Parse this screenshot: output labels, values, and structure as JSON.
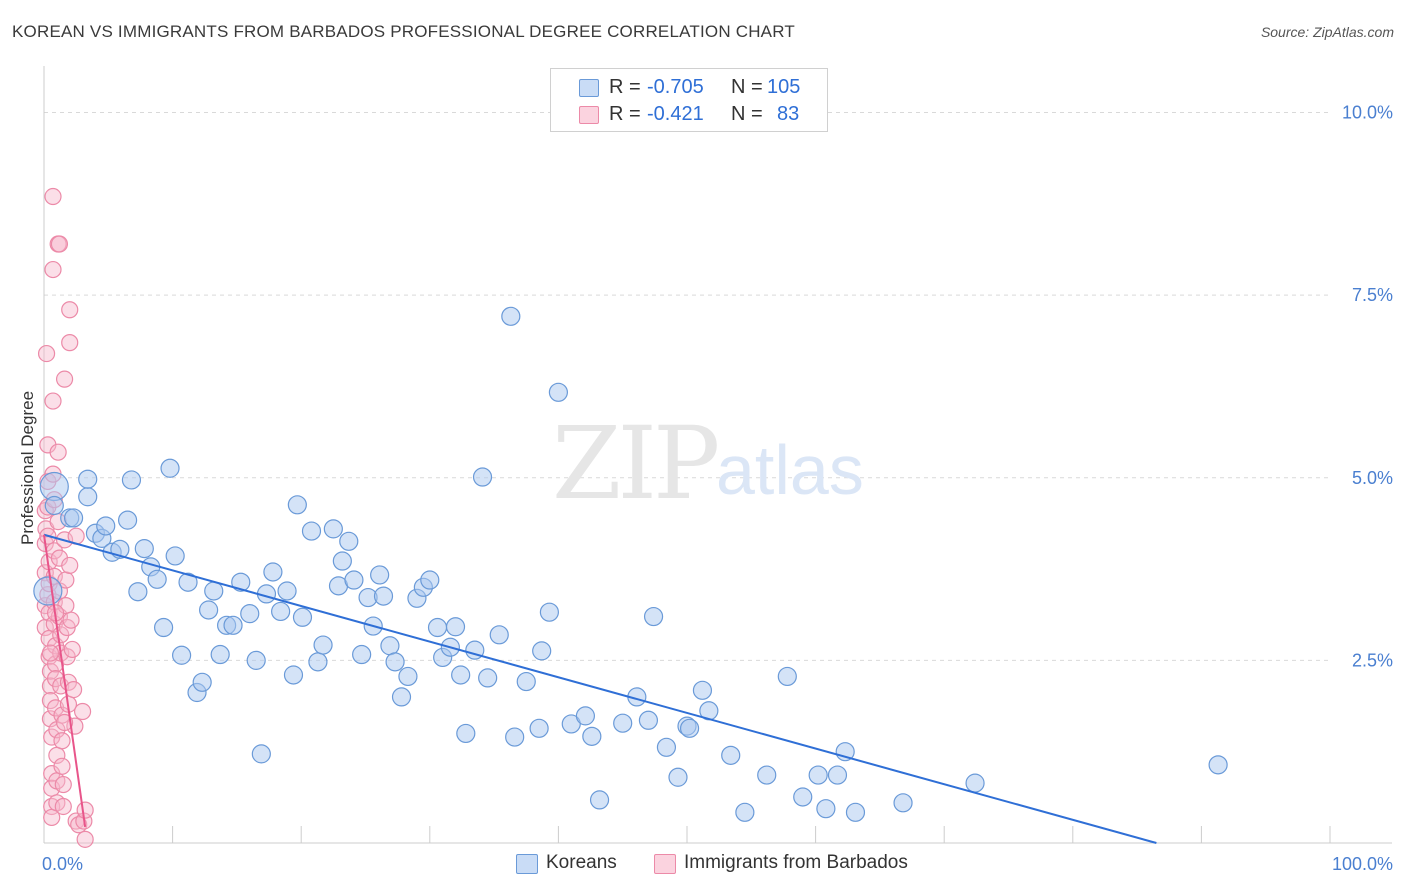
{
  "header": {
    "title": "KOREAN VS IMMIGRANTS FROM BARBADOS PROFESSIONAL DEGREE CORRELATION CHART",
    "source": "Source: ZipAtlas.com"
  },
  "watermark": {
    "zip": "ZIP",
    "atlas": "atlas"
  },
  "legend": {
    "rows": [
      {
        "r_label": "R =",
        "r_value": "-0.705",
        "n_label": "N =",
        "n_value": "105",
        "color": "#a9c8f0"
      },
      {
        "r_label": "R =",
        "r_value": "-0.421",
        "n_label": "N =",
        "n_value": "83",
        "color": "#f6b8cb"
      }
    ]
  },
  "bottom_legend": {
    "koreans": "Koreans",
    "barbados": "Immigrants from Barbados"
  },
  "colors": {
    "blue_fill": "#a9c8f0",
    "blue_stroke": "#6a9ad8",
    "blue_line": "#2f6fd6",
    "pink_fill": "#f6b8cb",
    "pink_stroke": "#ec8aa8",
    "pink_line": "#e8558a",
    "grid": "#d9d9d9"
  },
  "chart_data": {
    "type": "scatter",
    "title": "KOREAN VS IMMIGRANTS FROM BARBADOS PROFESSIONAL DEGREE CORRELATION CHART",
    "xlabel": "",
    "ylabel": "Professional Degree",
    "xlim": [
      0,
      100
    ],
    "ylim": [
      0,
      10.5
    ],
    "x_tick_labels": [
      "0.0%",
      "100.0%"
    ],
    "y_ticks": [
      2.5,
      5.0,
      7.5,
      10.0
    ],
    "y_tick_labels": [
      "2.5%",
      "5.0%",
      "7.5%",
      "10.0%"
    ],
    "grid": true,
    "series": [
      {
        "name": "Koreans",
        "trend": {
          "x": [
            0,
            86.5
          ],
          "y": [
            4.22,
            0.0
          ]
        },
        "points": [
          [
            0.3,
            3.45
          ],
          [
            0.8,
            4.88
          ],
          [
            0.8,
            4.62
          ],
          [
            2.0,
            4.45
          ],
          [
            2.3,
            4.45
          ],
          [
            3.4,
            4.74
          ],
          [
            3.4,
            4.98
          ],
          [
            4.0,
            4.24
          ],
          [
            4.5,
            4.17
          ],
          [
            4.8,
            4.34
          ],
          [
            5.3,
            3.98
          ],
          [
            5.9,
            4.02
          ],
          [
            6.5,
            4.42
          ],
          [
            6.8,
            4.97
          ],
          [
            7.3,
            3.44
          ],
          [
            7.8,
            4.03
          ],
          [
            8.3,
            3.78
          ],
          [
            8.8,
            3.61
          ],
          [
            9.3,
            2.95
          ],
          [
            9.8,
            5.13
          ],
          [
            10.2,
            3.93
          ],
          [
            10.7,
            2.57
          ],
          [
            11.2,
            3.57
          ],
          [
            11.9,
            2.06
          ],
          [
            12.3,
            2.2
          ],
          [
            12.8,
            3.19
          ],
          [
            13.2,
            3.45
          ],
          [
            13.7,
            2.58
          ],
          [
            14.2,
            2.98
          ],
          [
            14.7,
            2.98
          ],
          [
            15.3,
            3.57
          ],
          [
            16.0,
            3.14
          ],
          [
            16.5,
            2.5
          ],
          [
            16.9,
            1.22
          ],
          [
            17.3,
            3.41
          ],
          [
            17.8,
            3.71
          ],
          [
            18.4,
            3.17
          ],
          [
            18.9,
            3.45
          ],
          [
            19.4,
            2.3
          ],
          [
            19.7,
            4.63
          ],
          [
            20.1,
            3.09
          ],
          [
            20.8,
            4.27
          ],
          [
            21.3,
            2.48
          ],
          [
            21.7,
            2.71
          ],
          [
            22.5,
            4.3
          ],
          [
            22.9,
            3.52
          ],
          [
            23.2,
            3.86
          ],
          [
            23.7,
            4.13
          ],
          [
            24.1,
            3.6
          ],
          [
            24.7,
            2.58
          ],
          [
            25.2,
            3.36
          ],
          [
            25.6,
            2.97
          ],
          [
            26.1,
            3.67
          ],
          [
            26.4,
            3.38
          ],
          [
            26.9,
            2.7
          ],
          [
            27.3,
            2.48
          ],
          [
            27.8,
            2.0
          ],
          [
            28.3,
            2.28
          ],
          [
            29.0,
            3.35
          ],
          [
            29.5,
            3.5
          ],
          [
            30.0,
            3.6
          ],
          [
            30.6,
            2.95
          ],
          [
            31.0,
            2.54
          ],
          [
            31.6,
            2.68
          ],
          [
            32.0,
            2.96
          ],
          [
            32.4,
            2.3
          ],
          [
            32.8,
            1.5
          ],
          [
            33.5,
            2.64
          ],
          [
            34.1,
            5.01
          ],
          [
            34.5,
            2.26
          ],
          [
            35.4,
            2.85
          ],
          [
            36.3,
            7.21
          ],
          [
            36.6,
            1.45
          ],
          [
            37.5,
            2.21
          ],
          [
            38.5,
            1.57
          ],
          [
            38.7,
            2.63
          ],
          [
            39.3,
            3.16
          ],
          [
            40.0,
            6.17
          ],
          [
            41.0,
            1.63
          ],
          [
            42.1,
            1.74
          ],
          [
            42.6,
            1.46
          ],
          [
            43.2,
            0.59
          ],
          [
            45.0,
            1.64
          ],
          [
            46.1,
            2.0
          ],
          [
            47.0,
            1.68
          ],
          [
            47.4,
            3.1
          ],
          [
            48.4,
            1.31
          ],
          [
            49.3,
            0.9
          ],
          [
            50.0,
            1.6
          ],
          [
            50.2,
            1.57
          ],
          [
            51.2,
            2.09
          ],
          [
            51.7,
            1.81
          ],
          [
            53.4,
            1.2
          ],
          [
            54.5,
            0.42
          ],
          [
            56.2,
            0.93
          ],
          [
            57.8,
            2.28
          ],
          [
            59.0,
            0.63
          ],
          [
            60.2,
            0.93
          ],
          [
            60.8,
            0.47
          ],
          [
            61.7,
            0.93
          ],
          [
            62.3,
            1.25
          ],
          [
            63.1,
            0.42
          ],
          [
            66.8,
            0.55
          ],
          [
            72.4,
            0.82
          ],
          [
            91.3,
            1.07
          ]
        ]
      },
      {
        "name": "Immigrants from Barbados",
        "trend": {
          "x": [
            0,
            3.2
          ],
          "y": [
            4.22,
            0.22
          ]
        },
        "points": [
          [
            0.1,
            4.55
          ],
          [
            0.1,
            4.1
          ],
          [
            0.1,
            3.7
          ],
          [
            0.1,
            3.25
          ],
          [
            0.1,
            2.95
          ],
          [
            0.15,
            4.3
          ],
          [
            0.2,
            6.7
          ],
          [
            0.3,
            3.4
          ],
          [
            0.3,
            5.45
          ],
          [
            0.3,
            4.95
          ],
          [
            0.3,
            4.6
          ],
          [
            0.3,
            4.2
          ],
          [
            0.4,
            3.85
          ],
          [
            0.4,
            3.55
          ],
          [
            0.4,
            3.15
          ],
          [
            0.4,
            2.8
          ],
          [
            0.4,
            2.55
          ],
          [
            0.5,
            2.35
          ],
          [
            0.5,
            2.15
          ],
          [
            0.5,
            1.95
          ],
          [
            0.5,
            1.7
          ],
          [
            0.6,
            1.45
          ],
          [
            0.6,
            0.95
          ],
          [
            0.6,
            0.75
          ],
          [
            0.6,
            0.5
          ],
          [
            0.6,
            0.35
          ],
          [
            0.7,
            8.85
          ],
          [
            0.7,
            7.85
          ],
          [
            0.7,
            6.05
          ],
          [
            0.7,
            5.05
          ],
          [
            0.8,
            4.7
          ],
          [
            0.8,
            4.0
          ],
          [
            0.8,
            3.65
          ],
          [
            0.8,
            3.3
          ],
          [
            0.8,
            3.0
          ],
          [
            0.9,
            2.7
          ],
          [
            0.9,
            2.45
          ],
          [
            0.9,
            2.25
          ],
          [
            0.9,
            1.85
          ],
          [
            1.0,
            1.55
          ],
          [
            1.0,
            1.2
          ],
          [
            1.0,
            0.85
          ],
          [
            1.0,
            0.55
          ],
          [
            1.1,
            8.2
          ],
          [
            1.1,
            5.35
          ],
          [
            1.1,
            4.4
          ],
          [
            1.2,
            3.9
          ],
          [
            1.2,
            3.45
          ],
          [
            1.2,
            3.1
          ],
          [
            1.3,
            2.85
          ],
          [
            1.3,
            2.6
          ],
          [
            1.3,
            2.15
          ],
          [
            1.4,
            1.75
          ],
          [
            1.4,
            1.4
          ],
          [
            1.4,
            1.05
          ],
          [
            1.5,
            0.8
          ],
          [
            1.5,
            0.5
          ],
          [
            1.6,
            6.35
          ],
          [
            1.6,
            4.15
          ],
          [
            1.7,
            3.6
          ],
          [
            1.7,
            3.25
          ],
          [
            1.8,
            2.95
          ],
          [
            1.8,
            2.55
          ],
          [
            1.9,
            2.2
          ],
          [
            1.9,
            1.9
          ],
          [
            2.0,
            7.3
          ],
          [
            2.0,
            6.85
          ],
          [
            2.0,
            3.8
          ],
          [
            2.1,
            3.05
          ],
          [
            2.2,
            2.65
          ],
          [
            2.3,
            2.1
          ],
          [
            2.4,
            1.6
          ],
          [
            2.5,
            4.2
          ],
          [
            2.5,
            0.3
          ],
          [
            2.7,
            0.25
          ],
          [
            3.0,
            1.8
          ],
          [
            3.1,
            0.3
          ],
          [
            3.2,
            0.05
          ],
          [
            3.2,
            0.45
          ],
          [
            1.2,
            8.2
          ],
          [
            0.9,
            3.15
          ],
          [
            0.5,
            2.6
          ],
          [
            1.6,
            1.65
          ]
        ]
      }
    ]
  }
}
